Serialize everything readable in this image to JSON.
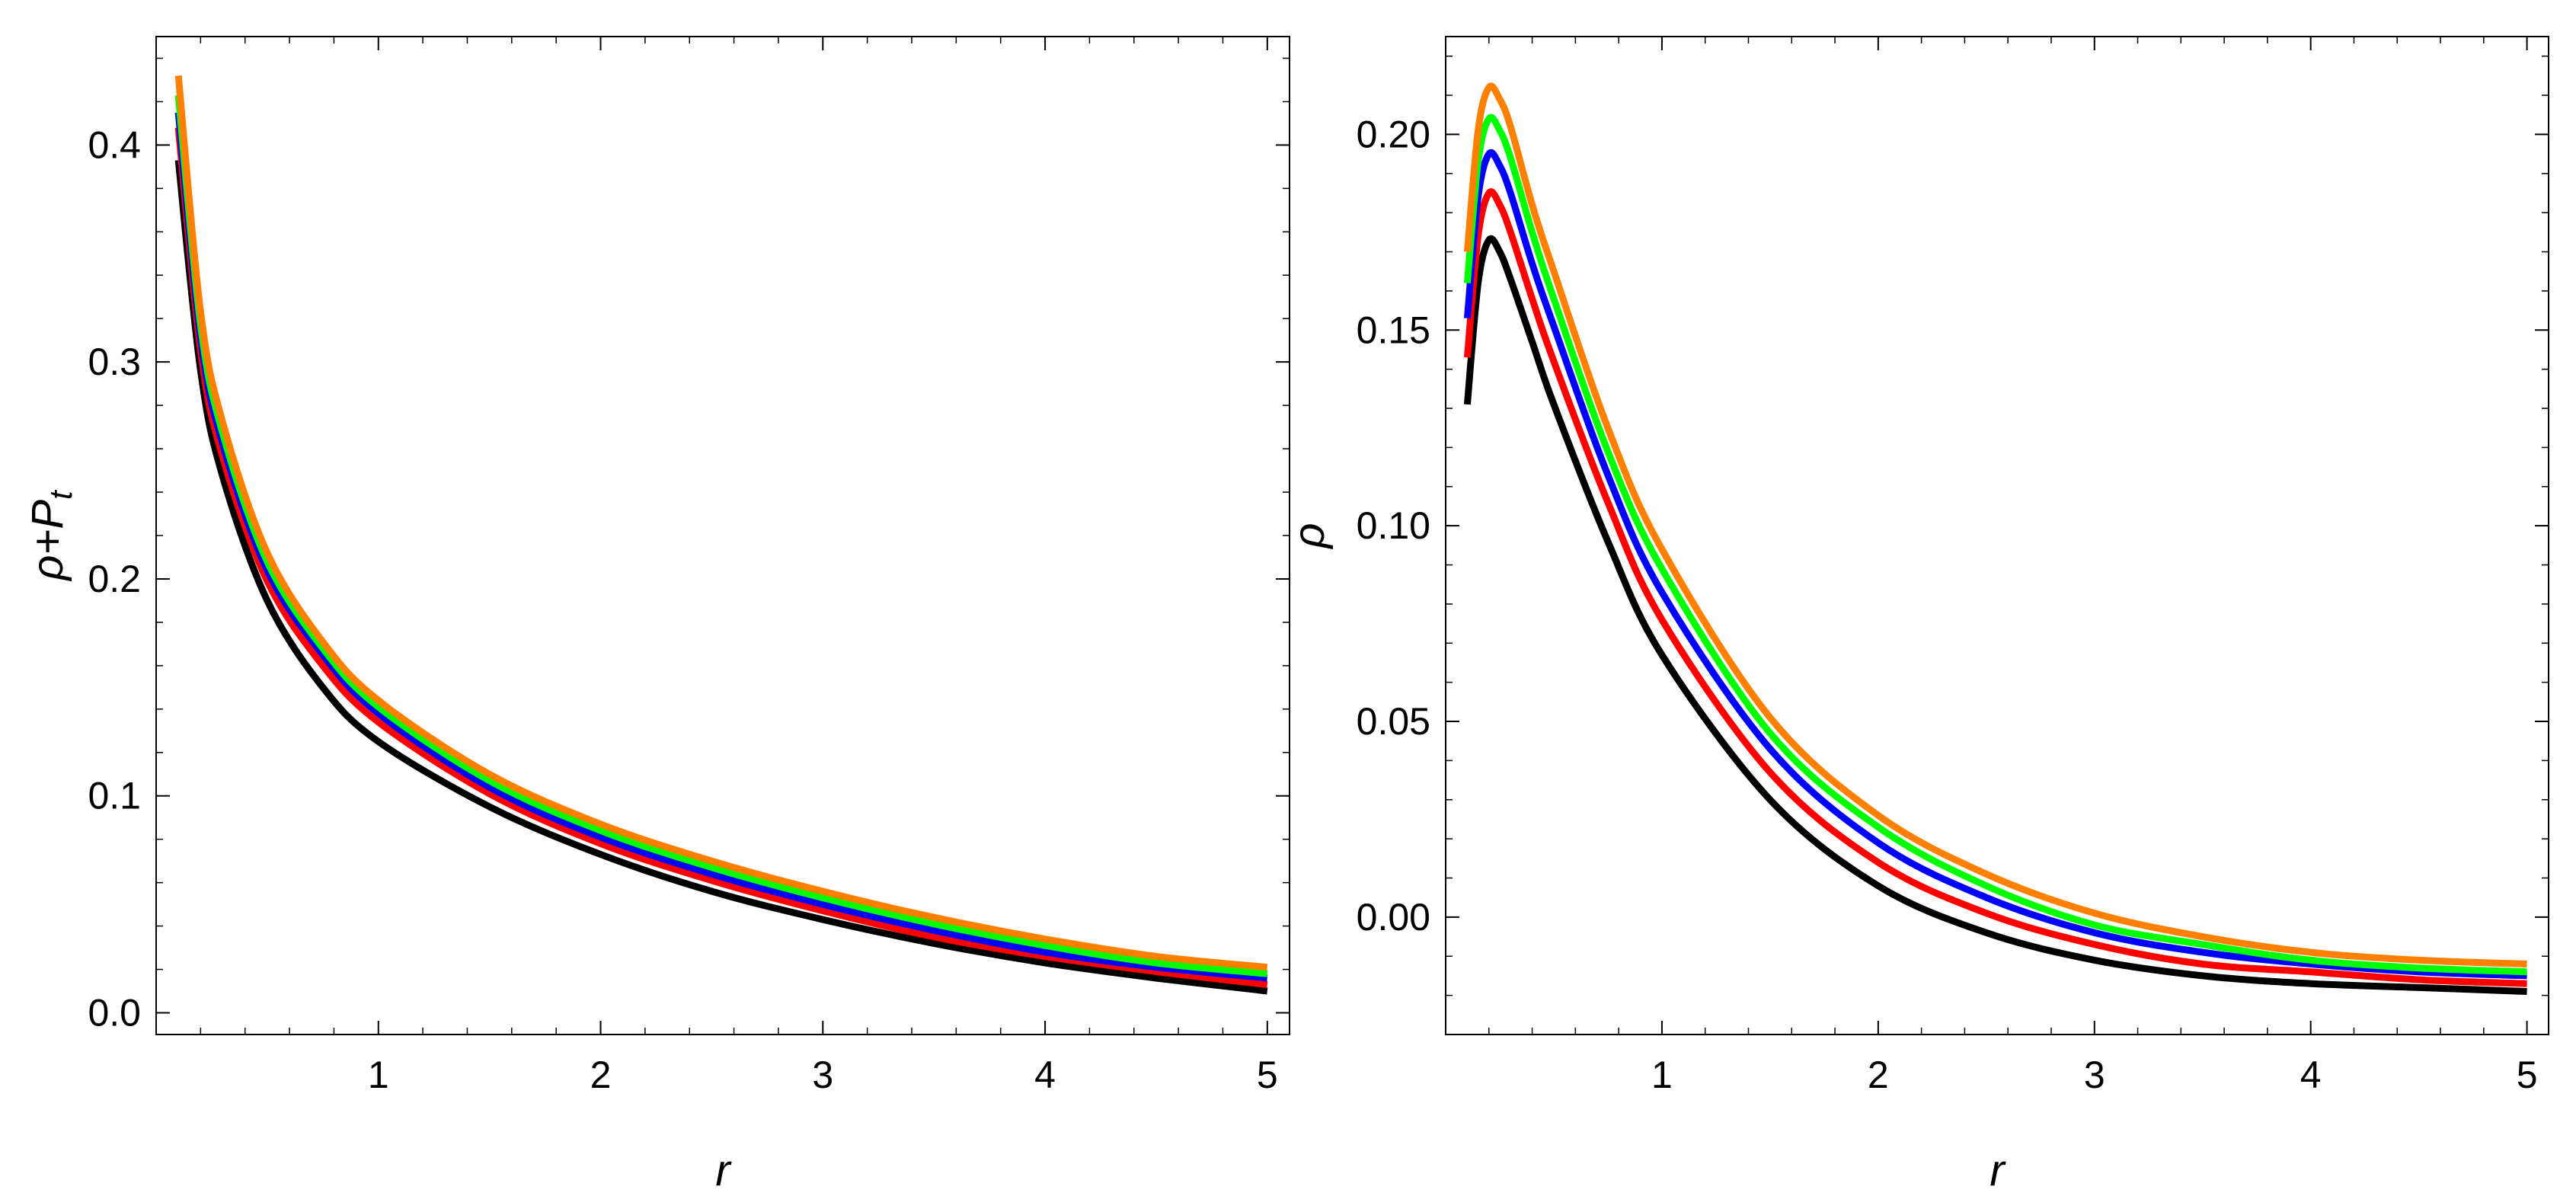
{
  "chart_data": [
    {
      "type": "line",
      "title": "",
      "xlabel": "r",
      "ylabel": "ρ+P",
      "ylabel_sub": "t",
      "xlim": [
        0.0,
        5.1
      ],
      "ylim": [
        -0.01,
        0.45
      ],
      "xticks": [
        1,
        2,
        3,
        4,
        5
      ],
      "xtick_labels": [
        "1",
        "2",
        "3",
        "4",
        "5"
      ],
      "yticks": [
        0.0,
        0.1,
        0.2,
        0.3,
        0.4
      ],
      "ytick_labels": [
        "0.0",
        "0.1",
        "0.2",
        "0.3",
        "0.4"
      ],
      "grid": false,
      "legend": "none",
      "series": [
        {
          "color": "#000000",
          "x": [
            0.1,
            0.2,
            0.3,
            0.5,
            0.75,
            1,
            1.5,
            2,
            2.5,
            3,
            3.5,
            4,
            4.5,
            5
          ],
          "y": [
            0.393,
            0.296,
            0.247,
            0.19,
            0.15,
            0.125,
            0.095,
            0.073,
            0.056,
            0.043,
            0.032,
            0.023,
            0.016,
            0.01
          ]
        },
        {
          "color": "#ff0000",
          "x": [
            0.1,
            0.2,
            0.3,
            0.5,
            0.75,
            1,
            1.5,
            2,
            2.5,
            3,
            3.5,
            4,
            4.5,
            5
          ],
          "y": [
            0.408,
            0.305,
            0.256,
            0.199,
            0.16,
            0.134,
            0.101,
            0.078,
            0.061,
            0.047,
            0.035,
            0.026,
            0.019,
            0.013
          ]
        },
        {
          "color": "#0000ff",
          "x": [
            0.1,
            0.2,
            0.3,
            0.5,
            0.75,
            1,
            1.5,
            2,
            2.5,
            3,
            3.5,
            4,
            4.5,
            5
          ],
          "y": [
            0.415,
            0.311,
            0.262,
            0.204,
            0.165,
            0.138,
            0.104,
            0.081,
            0.064,
            0.05,
            0.038,
            0.028,
            0.021,
            0.016
          ]
        },
        {
          "color": "#00ff00",
          "x": [
            0.1,
            0.2,
            0.3,
            0.5,
            0.75,
            1,
            1.5,
            2,
            2.5,
            3,
            3.5,
            4,
            4.5,
            5
          ],
          "y": [
            0.423,
            0.317,
            0.267,
            0.208,
            0.168,
            0.141,
            0.107,
            0.084,
            0.067,
            0.053,
            0.041,
            0.031,
            0.023,
            0.018
          ]
        },
        {
          "color": "#ff8000",
          "x": [
            0.1,
            0.2,
            0.3,
            0.5,
            0.75,
            1,
            1.5,
            2,
            2.5,
            3,
            3.5,
            4,
            4.5,
            5
          ],
          "y": [
            0.432,
            0.323,
            0.272,
            0.212,
            0.171,
            0.144,
            0.11,
            0.087,
            0.07,
            0.056,
            0.044,
            0.034,
            0.026,
            0.021
          ]
        }
      ]
    },
    {
      "type": "line",
      "title": "",
      "xlabel": "r",
      "ylabel": "ρ",
      "xlim": [
        0.0,
        5.1
      ],
      "ylim": [
        -0.03,
        0.225
      ],
      "xticks": [
        1,
        2,
        3,
        4,
        5
      ],
      "xtick_labels": [
        "1",
        "2",
        "3",
        "4",
        "5"
      ],
      "yticks": [
        0.0,
        0.05,
        0.1,
        0.15,
        0.2
      ],
      "ytick_labels": [
        "0.00",
        "0.05",
        "0.10",
        "0.15",
        "0.20"
      ],
      "grid": false,
      "legend": "none",
      "series": [
        {
          "color": "#000000",
          "x": [
            0.1,
            0.15,
            0.2,
            0.25,
            0.3,
            0.4,
            0.5,
            0.75,
            1,
            1.5,
            2,
            2.5,
            3,
            3.5,
            4,
            4.5,
            5
          ],
          "y": [
            0.131,
            0.162,
            0.173,
            0.17,
            0.163,
            0.147,
            0.131,
            0.096,
            0.067,
            0.03,
            0.008,
            -0.004,
            -0.011,
            -0.015,
            -0.017,
            -0.018,
            -0.019
          ]
        },
        {
          "color": "#ff0000",
          "x": [
            0.1,
            0.15,
            0.2,
            0.25,
            0.3,
            0.4,
            0.5,
            0.75,
            1,
            1.5,
            2,
            2.5,
            3,
            3.5,
            4,
            4.5,
            5
          ],
          "y": [
            0.143,
            0.174,
            0.185,
            0.182,
            0.175,
            0.158,
            0.142,
            0.106,
            0.076,
            0.037,
            0.014,
            0.001,
            -0.007,
            -0.012,
            -0.014,
            -0.016,
            -0.017
          ]
        },
        {
          "color": "#0000ff",
          "x": [
            0.1,
            0.15,
            0.2,
            0.25,
            0.3,
            0.4,
            0.5,
            0.75,
            1,
            1.5,
            2,
            2.5,
            3,
            3.5,
            4,
            4.5,
            5
          ],
          "y": [
            0.153,
            0.184,
            0.195,
            0.192,
            0.185,
            0.167,
            0.151,
            0.113,
            0.083,
            0.043,
            0.019,
            0.005,
            -0.004,
            -0.009,
            -0.012,
            -0.014,
            -0.015
          ]
        },
        {
          "color": "#00ff00",
          "x": [
            0.1,
            0.15,
            0.2,
            0.25,
            0.3,
            0.4,
            0.5,
            0.75,
            1,
            1.5,
            2,
            2.5,
            3,
            3.5,
            4,
            4.5,
            5
          ],
          "y": [
            0.162,
            0.193,
            0.204,
            0.201,
            0.194,
            0.175,
            0.158,
            0.119,
            0.089,
            0.047,
            0.023,
            0.008,
            -0.002,
            -0.007,
            -0.011,
            -0.013,
            -0.014
          ]
        },
        {
          "color": "#ff8000",
          "x": [
            0.1,
            0.15,
            0.2,
            0.25,
            0.3,
            0.4,
            0.5,
            0.75,
            1,
            1.5,
            2,
            2.5,
            3,
            3.5,
            4,
            4.5,
            5
          ],
          "y": [
            0.17,
            0.201,
            0.212,
            0.209,
            0.202,
            0.182,
            0.165,
            0.125,
            0.094,
            0.051,
            0.026,
            0.011,
            0.001,
            -0.005,
            -0.009,
            -0.011,
            -0.012
          ]
        }
      ]
    }
  ]
}
